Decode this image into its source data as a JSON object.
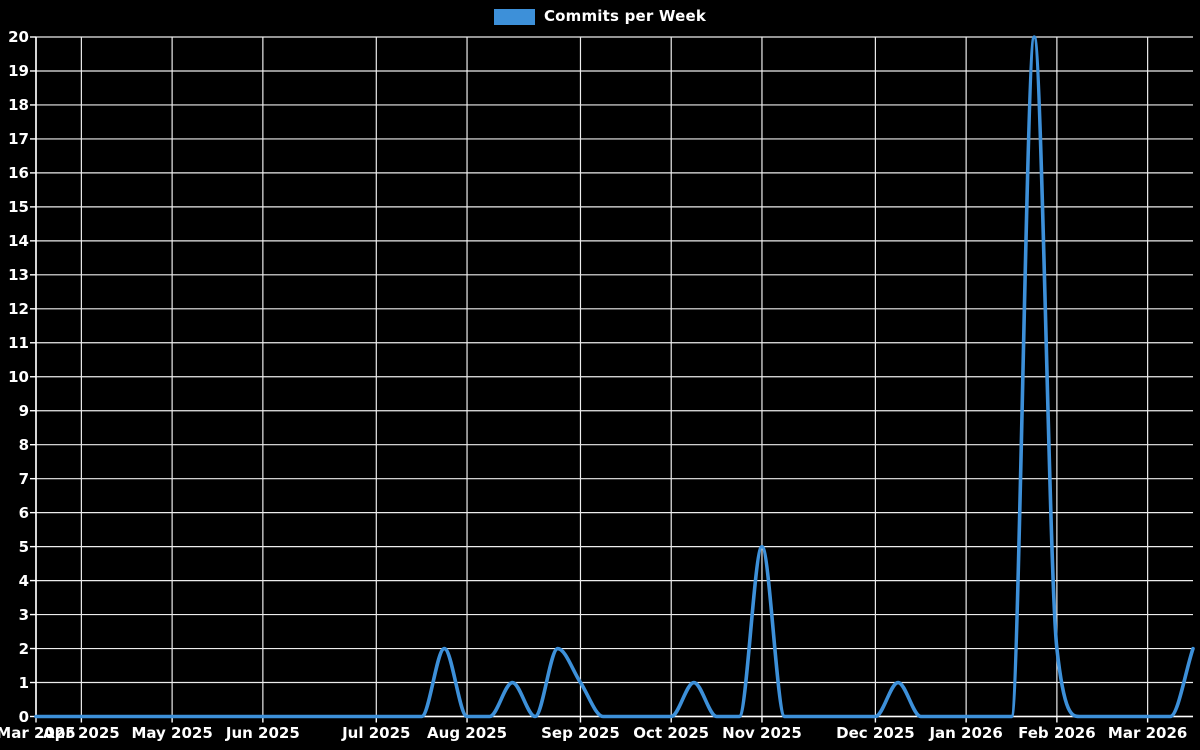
{
  "chart_data": {
    "type": "line",
    "title": "",
    "legend": {
      "label": "Commits per Week",
      "position": "top-center",
      "swatch_color": "#3d90d9"
    },
    "background_color": "#000000",
    "grid_color": "#ededed",
    "axis_color": "#ffffff",
    "text_color": "#ffffff",
    "line_color": "#3d90d9",
    "smoothing": "monotone-cubic",
    "fill": false,
    "grid": true,
    "y_axis": {
      "min": 0,
      "max": 20,
      "tick_interval": 1
    },
    "y_tick_labels": [
      "0",
      "1",
      "2",
      "3",
      "4",
      "5",
      "6",
      "7",
      "8",
      "9",
      "10",
      "11",
      "12",
      "13",
      "14",
      "15",
      "16",
      "17",
      "18",
      "19",
      "20"
    ],
    "x_ticks": [
      {
        "label": "Mar 2025",
        "week_index": 0
      },
      {
        "label": "Apr 2025",
        "week_index": 2
      },
      {
        "label": "May 2025",
        "week_index": 6
      },
      {
        "label": "Jun 2025",
        "week_index": 10
      },
      {
        "label": "Jul 2025",
        "week_index": 15
      },
      {
        "label": "Aug 2025",
        "week_index": 19
      },
      {
        "label": "Sep 2025",
        "week_index": 24
      },
      {
        "label": "Oct 2025",
        "week_index": 28
      },
      {
        "label": "Nov 2025",
        "week_index": 32
      },
      {
        "label": "Dec 2025",
        "week_index": 37
      },
      {
        "label": "Jan 2026",
        "week_index": 41
      },
      {
        "label": "Feb 2026",
        "week_index": 45
      },
      {
        "label": "Mar 2026",
        "week_index": 49
      }
    ],
    "series": [
      {
        "name": "Commits per Week",
        "color": "#3d90d9",
        "x_unit": "week-index",
        "values": [
          0,
          0,
          0,
          0,
          0,
          0,
          0,
          0,
          0,
          0,
          0,
          0,
          0,
          0,
          0,
          0,
          0,
          0,
          2,
          0,
          0,
          1,
          0,
          2,
          1,
          0,
          0,
          0,
          0,
          1,
          0,
          0,
          5,
          0,
          0,
          0,
          0,
          0,
          1,
          0,
          0,
          0,
          0,
          0,
          20,
          2,
          0,
          0,
          0,
          0,
          0,
          2
        ]
      }
    ]
  }
}
